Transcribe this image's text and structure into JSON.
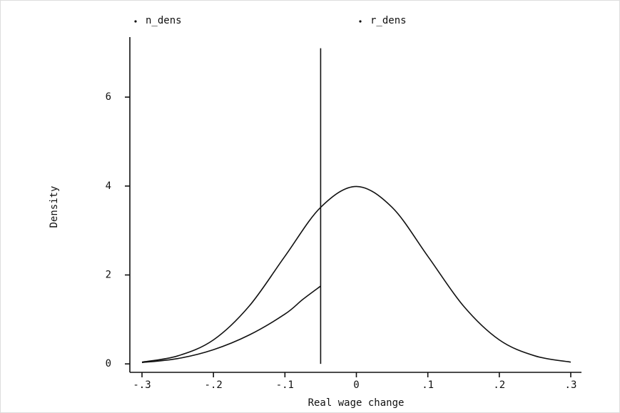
{
  "chart_data": {
    "type": "line",
    "x_label": "Real wage change",
    "y_label": "Density",
    "xlim": [
      -0.317,
      0.315
    ],
    "ylim": [
      -0.19,
      7.35
    ],
    "xticks": [
      {
        "value": -0.3,
        "label": "-.3"
      },
      {
        "value": -0.2,
        "label": "-.2"
      },
      {
        "value": -0.1,
        "label": "-.1"
      },
      0,
      {
        "value": 0.1,
        "label": ".1"
      },
      {
        "value": 0.2,
        "label": ".2"
      },
      {
        "value": 0.3,
        "label": ".3"
      }
    ],
    "yticks": [
      0,
      2,
      4,
      6
    ],
    "grid": false,
    "legend": "top",
    "series": [
      {
        "name": "n_dens",
        "color": "#111111",
        "x": [
          -0.3,
          -0.25,
          -0.2,
          -0.15,
          -0.1,
          -0.05,
          0,
          0.05,
          0.1,
          0.15,
          0.2,
          0.25,
          0.3
        ],
        "values": [
          0.04,
          0.18,
          0.54,
          1.3,
          2.42,
          3.52,
          3.99,
          3.52,
          2.42,
          1.3,
          0.54,
          0.18,
          0.04
        ]
      },
      {
        "name": "r_dens",
        "color": "#111111",
        "x": [
          -0.3,
          -0.25,
          -0.2,
          -0.15,
          -0.1,
          -0.075,
          -0.05,
          -0.05,
          -0.05
        ],
        "values": [
          0.03,
          0.12,
          0.32,
          0.65,
          1.12,
          1.45,
          1.75,
          7.1,
          0
        ]
      }
    ]
  }
}
